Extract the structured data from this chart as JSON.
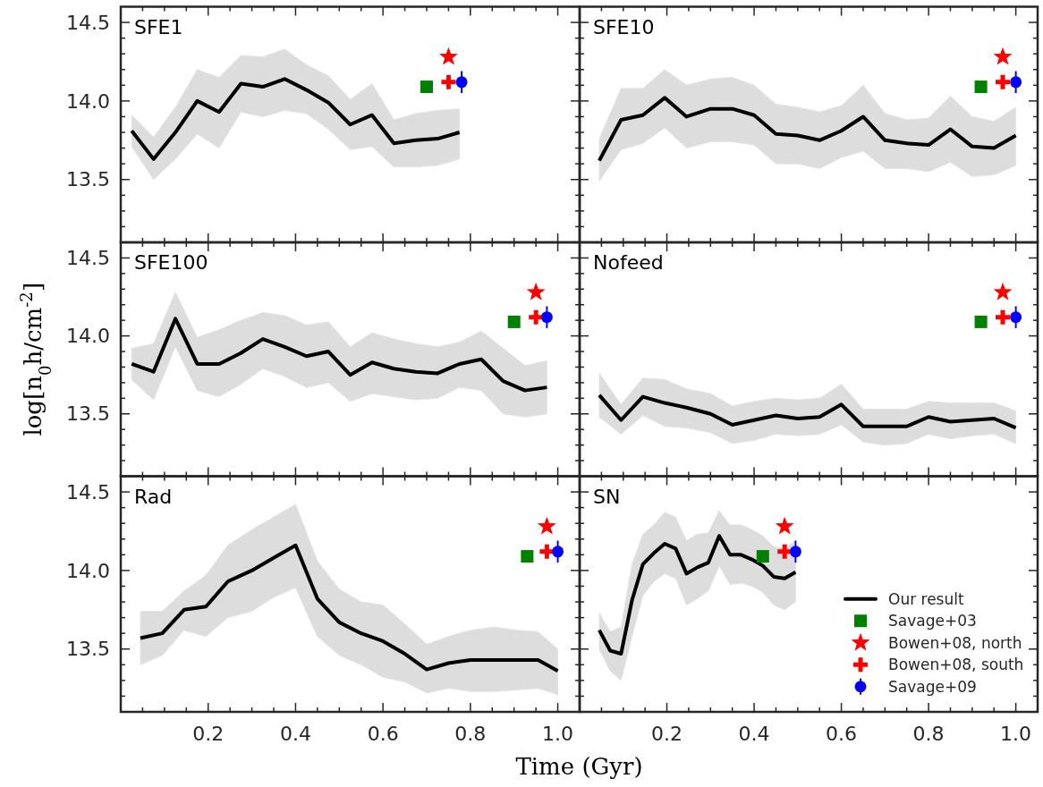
{
  "chart_data": [
    {
      "type": "line",
      "title": "SFE1",
      "xlim": [
        0,
        1.05
      ],
      "ylim": [
        13.1,
        14.6
      ],
      "tick_labels": "y",
      "xticks": [
        {
          "value": 0.05,
          "label": null
        },
        {
          "value": 0.1,
          "label": null
        },
        {
          "value": 0.15,
          "label": null
        },
        0.2,
        {
          "value": 0.25,
          "label": null
        },
        {
          "value": 0.3,
          "label": null
        },
        {
          "value": 0.35,
          "label": null
        },
        0.4,
        {
          "value": 0.45,
          "label": null
        },
        {
          "value": 0.5,
          "label": null
        },
        {
          "value": 0.55,
          "label": null
        },
        0.6,
        {
          "value": 0.65,
          "label": null
        },
        {
          "value": 0.7,
          "label": null
        },
        {
          "value": 0.75,
          "label": null
        },
        0.8,
        {
          "value": 0.85,
          "label": null
        },
        {
          "value": 0.9,
          "label": null
        },
        {
          "value": 0.95,
          "label": null
        },
        1.0
      ],
      "yticks": [
        {
          "value": 13.2,
          "label": null
        },
        {
          "value": 13.3,
          "label": null
        },
        {
          "value": 13.4,
          "label": null
        },
        {
          "value": 13.5,
          "label": "13.5"
        },
        {
          "value": 13.6,
          "label": null
        },
        {
          "value": 13.7,
          "label": null
        },
        {
          "value": 13.8,
          "label": null
        },
        {
          "value": 13.9,
          "label": null
        },
        {
          "value": 14.0,
          "label": "14.0"
        },
        {
          "value": 14.1,
          "label": null
        },
        {
          "value": 14.2,
          "label": null
        },
        {
          "value": 14.3,
          "label": null
        },
        {
          "value": 14.4,
          "label": null
        },
        {
          "value": 14.5,
          "label": "14.5"
        }
      ],
      "series": [
        {
          "color": "#000000",
          "x": [
            0.025,
            0.075,
            0.125,
            0.175,
            0.225,
            0.275,
            0.325,
            0.375,
            0.425,
            0.475,
            0.525,
            0.575,
            0.625,
            0.675,
            0.725,
            0.775
          ],
          "values": [
            13.81,
            13.63,
            13.8,
            14.0,
            13.93,
            14.11,
            14.09,
            14.14,
            14.07,
            13.99,
            13.85,
            13.91,
            13.73,
            13.75,
            13.76,
            13.8
          ],
          "upper": [
            13.91,
            13.77,
            13.96,
            14.2,
            14.15,
            14.29,
            14.28,
            14.33,
            14.23,
            14.16,
            14.01,
            14.11,
            13.88,
            13.92,
            13.94,
            13.95
          ],
          "lower": [
            13.71,
            13.5,
            13.63,
            13.79,
            13.7,
            13.93,
            13.9,
            13.94,
            13.92,
            13.82,
            13.69,
            13.71,
            13.58,
            13.58,
            13.59,
            13.63
          ]
        },
        {
          "type": "scatter",
          "marker": "square",
          "color": "#008000",
          "x": [
            0.7
          ],
          "values": [
            14.09
          ]
        },
        {
          "type": "scatter",
          "marker": "star",
          "color": "#ff0000",
          "x": [
            0.75
          ],
          "values": [
            14.28
          ]
        },
        {
          "type": "scatter",
          "marker": "cross",
          "color": "#ff0000",
          "x": [
            0.75
          ],
          "values": [
            14.12
          ]
        },
        {
          "type": "scatter",
          "marker": "circle",
          "color": "#0000ff",
          "x": [
            0.78
          ],
          "values": [
            14.12
          ],
          "errors": [
            0.07
          ]
        }
      ]
    },
    {
      "type": "line",
      "title": "SFE10",
      "xlim": [
        0,
        1.05
      ],
      "ylim": [
        13.1,
        14.6
      ],
      "tick_labels": false,
      "xticks": [
        {
          "value": 0.05,
          "label": null
        },
        {
          "value": 0.1,
          "label": null
        },
        {
          "value": 0.15,
          "label": null
        },
        0.2,
        {
          "value": 0.25,
          "label": null
        },
        {
          "value": 0.3,
          "label": null
        },
        {
          "value": 0.35,
          "label": null
        },
        0.4,
        {
          "value": 0.45,
          "label": null
        },
        {
          "value": 0.5,
          "label": null
        },
        {
          "value": 0.55,
          "label": null
        },
        0.6,
        {
          "value": 0.65,
          "label": null
        },
        {
          "value": 0.7,
          "label": null
        },
        {
          "value": 0.75,
          "label": null
        },
        0.8,
        {
          "value": 0.85,
          "label": null
        },
        {
          "value": 0.9,
          "label": null
        },
        {
          "value": 0.95,
          "label": null
        },
        1.0
      ],
      "yticks": [
        {
          "value": 13.2,
          "label": null
        },
        {
          "value": 13.3,
          "label": null
        },
        {
          "value": 13.4,
          "label": null
        },
        13.5,
        {
          "value": 13.6,
          "label": null
        },
        {
          "value": 13.7,
          "label": null
        },
        {
          "value": 13.8,
          "label": null
        },
        {
          "value": 13.9,
          "label": null
        },
        14.0,
        {
          "value": 14.1,
          "label": null
        },
        {
          "value": 14.2,
          "label": null
        },
        {
          "value": 14.3,
          "label": null
        },
        {
          "value": 14.4,
          "label": null
        },
        14.5
      ],
      "series": [
        {
          "color": "#000000",
          "x": [
            0.045,
            0.095,
            0.145,
            0.195,
            0.245,
            0.3,
            0.35,
            0.4,
            0.45,
            0.5,
            0.55,
            0.6,
            0.65,
            0.7,
            0.75,
            0.8,
            0.85,
            0.9,
            0.95,
            1.0
          ],
          "values": [
            13.62,
            13.88,
            13.91,
            14.02,
            13.9,
            13.95,
            13.95,
            13.91,
            13.79,
            13.78,
            13.75,
            13.81,
            13.9,
            13.75,
            13.73,
            13.72,
            13.82,
            13.71,
            13.7,
            13.78
          ],
          "upper": [
            13.76,
            14.08,
            14.08,
            14.2,
            14.1,
            14.14,
            14.15,
            14.1,
            13.98,
            13.96,
            13.93,
            13.97,
            14.1,
            13.92,
            13.88,
            13.89,
            14.03,
            13.9,
            13.87,
            13.96
          ],
          "lower": [
            13.49,
            13.69,
            13.73,
            13.83,
            13.7,
            13.74,
            13.74,
            13.72,
            13.6,
            13.6,
            13.57,
            13.64,
            13.68,
            13.57,
            13.57,
            13.55,
            13.61,
            13.52,
            13.53,
            13.59
          ]
        },
        {
          "type": "scatter",
          "marker": "square",
          "color": "#008000",
          "x": [
            0.92
          ],
          "values": [
            14.09
          ]
        },
        {
          "type": "scatter",
          "marker": "star",
          "color": "#ff0000",
          "x": [
            0.97
          ],
          "values": [
            14.28
          ]
        },
        {
          "type": "scatter",
          "marker": "cross",
          "color": "#ff0000",
          "x": [
            0.97
          ],
          "values": [
            14.12
          ]
        },
        {
          "type": "scatter",
          "marker": "circle",
          "color": "#0000ff",
          "x": [
            1.0
          ],
          "values": [
            14.12
          ],
          "errors": [
            0.07
          ]
        }
      ]
    },
    {
      "type": "line",
      "title": "SFE100",
      "ylabel": "log[n$_{0}$h/cm$^{-2}$]",
      "xlim": [
        0,
        1.05
      ],
      "ylim": [
        13.1,
        14.6
      ],
      "tick_labels": "y",
      "xticks": [
        {
          "value": 0.05,
          "label": null
        },
        {
          "value": 0.1,
          "label": null
        },
        {
          "value": 0.15,
          "label": null
        },
        0.2,
        {
          "value": 0.25,
          "label": null
        },
        {
          "value": 0.3,
          "label": null
        },
        {
          "value": 0.35,
          "label": null
        },
        0.4,
        {
          "value": 0.45,
          "label": null
        },
        {
          "value": 0.5,
          "label": null
        },
        {
          "value": 0.55,
          "label": null
        },
        0.6,
        {
          "value": 0.65,
          "label": null
        },
        {
          "value": 0.7,
          "label": null
        },
        {
          "value": 0.75,
          "label": null
        },
        0.8,
        {
          "value": 0.85,
          "label": null
        },
        {
          "value": 0.9,
          "label": null
        },
        {
          "value": 0.95,
          "label": null
        },
        1.0
      ],
      "yticks": [
        {
          "value": 13.2,
          "label": null
        },
        {
          "value": 13.3,
          "label": null
        },
        {
          "value": 13.4,
          "label": null
        },
        {
          "value": 13.5,
          "label": "13.5"
        },
        {
          "value": 13.6,
          "label": null
        },
        {
          "value": 13.7,
          "label": null
        },
        {
          "value": 13.8,
          "label": null
        },
        {
          "value": 13.9,
          "label": null
        },
        {
          "value": 14.0,
          "label": "14.0"
        },
        {
          "value": 14.1,
          "label": null
        },
        {
          "value": 14.2,
          "label": null
        },
        {
          "value": 14.3,
          "label": null
        },
        {
          "value": 14.4,
          "label": null
        },
        {
          "value": 14.5,
          "label": "14.5"
        }
      ],
      "series": [
        {
          "color": "#000000",
          "x": [
            0.025,
            0.075,
            0.125,
            0.175,
            0.225,
            0.275,
            0.325,
            0.375,
            0.425,
            0.475,
            0.525,
            0.575,
            0.625,
            0.675,
            0.725,
            0.775,
            0.825,
            0.875,
            0.925,
            0.975
          ],
          "values": [
            13.82,
            13.77,
            14.11,
            13.82,
            13.82,
            13.89,
            13.98,
            13.93,
            13.87,
            13.9,
            13.75,
            13.83,
            13.79,
            13.77,
            13.76,
            13.82,
            13.85,
            13.71,
            13.65,
            13.67
          ],
          "upper": [
            13.92,
            13.95,
            14.28,
            13.99,
            14.04,
            14.1,
            14.15,
            14.13,
            14.07,
            14.09,
            13.93,
            14.02,
            13.98,
            13.95,
            13.93,
            13.96,
            14.03,
            13.92,
            13.81,
            13.84
          ],
          "lower": [
            13.72,
            13.59,
            13.93,
            13.65,
            13.61,
            13.69,
            13.79,
            13.74,
            13.67,
            13.7,
            13.58,
            13.63,
            13.61,
            13.59,
            13.6,
            13.67,
            13.65,
            13.5,
            13.48,
            13.5
          ]
        },
        {
          "type": "scatter",
          "marker": "square",
          "color": "#008000",
          "x": [
            0.9
          ],
          "values": [
            14.09
          ]
        },
        {
          "type": "scatter",
          "marker": "star",
          "color": "#ff0000",
          "x": [
            0.95
          ],
          "values": [
            14.28
          ]
        },
        {
          "type": "scatter",
          "marker": "cross",
          "color": "#ff0000",
          "x": [
            0.95
          ],
          "values": [
            14.12
          ]
        },
        {
          "type": "scatter",
          "marker": "circle",
          "color": "#0000ff",
          "x": [
            0.975
          ],
          "values": [
            14.12
          ],
          "errors": [
            0.07
          ]
        }
      ]
    },
    {
      "type": "line",
      "title": "Nofeed",
      "xlim": [
        0,
        1.05
      ],
      "ylim": [
        13.1,
        14.6
      ],
      "tick_labels": false,
      "xticks": [
        {
          "value": 0.05,
          "label": null
        },
        {
          "value": 0.1,
          "label": null
        },
        {
          "value": 0.15,
          "label": null
        },
        0.2,
        {
          "value": 0.25,
          "label": null
        },
        {
          "value": 0.3,
          "label": null
        },
        {
          "value": 0.35,
          "label": null
        },
        0.4,
        {
          "value": 0.45,
          "label": null
        },
        {
          "value": 0.5,
          "label": null
        },
        {
          "value": 0.55,
          "label": null
        },
        0.6,
        {
          "value": 0.65,
          "label": null
        },
        {
          "value": 0.7,
          "label": null
        },
        {
          "value": 0.75,
          "label": null
        },
        0.8,
        {
          "value": 0.85,
          "label": null
        },
        {
          "value": 0.9,
          "label": null
        },
        {
          "value": 0.95,
          "label": null
        },
        1.0
      ],
      "yticks": [
        {
          "value": 13.2,
          "label": null
        },
        {
          "value": 13.3,
          "label": null
        },
        {
          "value": 13.4,
          "label": null
        },
        13.5,
        {
          "value": 13.6,
          "label": null
        },
        {
          "value": 13.7,
          "label": null
        },
        {
          "value": 13.8,
          "label": null
        },
        {
          "value": 13.9,
          "label": null
        },
        14.0,
        {
          "value": 14.1,
          "label": null
        },
        {
          "value": 14.2,
          "label": null
        },
        {
          "value": 14.3,
          "label": null
        },
        {
          "value": 14.4,
          "label": null
        },
        14.5
      ],
      "series": [
        {
          "color": "#000000",
          "x": [
            0.045,
            0.095,
            0.145,
            0.195,
            0.245,
            0.3,
            0.35,
            0.4,
            0.45,
            0.5,
            0.55,
            0.6,
            0.65,
            0.7,
            0.75,
            0.8,
            0.85,
            0.9,
            0.95,
            1.0
          ],
          "values": [
            13.62,
            13.46,
            13.61,
            13.57,
            13.54,
            13.5,
            13.43,
            13.46,
            13.49,
            13.47,
            13.48,
            13.56,
            13.42,
            13.42,
            13.42,
            13.48,
            13.45,
            13.46,
            13.47,
            13.41
          ],
          "upper": [
            13.76,
            13.56,
            13.73,
            13.72,
            13.66,
            13.63,
            13.55,
            13.58,
            13.6,
            13.59,
            13.6,
            13.69,
            13.53,
            13.53,
            13.53,
            13.58,
            13.57,
            13.57,
            13.57,
            13.52
          ],
          "lower": [
            13.48,
            13.37,
            13.49,
            13.42,
            13.41,
            13.38,
            13.31,
            13.33,
            13.37,
            13.36,
            13.37,
            13.43,
            13.32,
            13.3,
            13.31,
            13.37,
            13.34,
            13.36,
            13.37,
            13.31
          ]
        },
        {
          "type": "scatter",
          "marker": "square",
          "color": "#008000",
          "x": [
            0.92
          ],
          "values": [
            14.09
          ]
        },
        {
          "type": "scatter",
          "marker": "star",
          "color": "#ff0000",
          "x": [
            0.97
          ],
          "values": [
            14.28
          ]
        },
        {
          "type": "scatter",
          "marker": "cross",
          "color": "#ff0000",
          "x": [
            0.97
          ],
          "values": [
            14.12
          ]
        },
        {
          "type": "scatter",
          "marker": "circle",
          "color": "#0000ff",
          "x": [
            1.0
          ],
          "values": [
            14.12
          ],
          "errors": [
            0.07
          ]
        }
      ]
    },
    {
      "type": "line",
      "title": "Rad",
      "xlabel": "Time (Gyr)",
      "xlim": [
        0,
        1.05
      ],
      "ylim": [
        13.1,
        14.6
      ],
      "xticks": [
        {
          "value": 0.05,
          "label": null
        },
        {
          "value": 0.1,
          "label": null
        },
        {
          "value": 0.15,
          "label": null
        },
        {
          "value": 0.2,
          "label": "0.2"
        },
        {
          "value": 0.25,
          "label": null
        },
        {
          "value": 0.3,
          "label": null
        },
        {
          "value": 0.35,
          "label": null
        },
        {
          "value": 0.4,
          "label": "0.4"
        },
        {
          "value": 0.45,
          "label": null
        },
        {
          "value": 0.5,
          "label": null
        },
        {
          "value": 0.55,
          "label": null
        },
        {
          "value": 0.6,
          "label": "0.6"
        },
        {
          "value": 0.65,
          "label": null
        },
        {
          "value": 0.7,
          "label": null
        },
        {
          "value": 0.75,
          "label": null
        },
        {
          "value": 0.8,
          "label": "0.8"
        },
        {
          "value": 0.85,
          "label": null
        },
        {
          "value": 0.9,
          "label": null
        },
        {
          "value": 0.95,
          "label": null
        },
        {
          "value": 1.0,
          "label": "1.0"
        }
      ],
      "yticks": [
        {
          "value": 13.2,
          "label": null
        },
        {
          "value": 13.3,
          "label": null
        },
        {
          "value": 13.4,
          "label": null
        },
        {
          "value": 13.5,
          "label": "13.5"
        },
        {
          "value": 13.6,
          "label": null
        },
        {
          "value": 13.7,
          "label": null
        },
        {
          "value": 13.8,
          "label": null
        },
        {
          "value": 13.9,
          "label": null
        },
        {
          "value": 14.0,
          "label": "14.0"
        },
        {
          "value": 14.1,
          "label": null
        },
        {
          "value": 14.2,
          "label": null
        },
        {
          "value": 14.3,
          "label": null
        },
        {
          "value": 14.4,
          "label": null
        },
        {
          "value": 14.5,
          "label": "14.5"
        }
      ],
      "series": [
        {
          "color": "#000000",
          "x": [
            0.045,
            0.095,
            0.145,
            0.195,
            0.245,
            0.3,
            0.35,
            0.4,
            0.45,
            0.5,
            0.55,
            0.6,
            0.65,
            0.7,
            0.75,
            0.8,
            0.855,
            0.905,
            0.955,
            1.0
          ],
          "values": [
            13.57,
            13.6,
            13.75,
            13.77,
            13.93,
            14.0,
            14.08,
            14.16,
            13.82,
            13.67,
            13.6,
            13.55,
            13.47,
            13.37,
            13.41,
            13.43,
            13.43,
            13.43,
            13.43,
            13.36
          ],
          "upper": [
            13.74,
            13.74,
            13.87,
            13.97,
            14.16,
            14.26,
            14.34,
            14.42,
            14.06,
            13.88,
            13.8,
            13.78,
            13.66,
            13.53,
            13.58,
            13.62,
            13.64,
            13.62,
            13.61,
            13.5
          ],
          "lower": [
            13.4,
            13.46,
            13.62,
            13.58,
            13.7,
            13.74,
            13.83,
            13.89,
            13.58,
            13.46,
            13.4,
            13.32,
            13.29,
            13.22,
            13.25,
            13.23,
            13.23,
            13.24,
            13.25,
            13.21
          ]
        },
        {
          "type": "scatter",
          "marker": "square",
          "color": "#008000",
          "x": [
            0.93
          ],
          "values": [
            14.09
          ]
        },
        {
          "type": "scatter",
          "marker": "star",
          "color": "#ff0000",
          "x": [
            0.975
          ],
          "values": [
            14.28
          ]
        },
        {
          "type": "scatter",
          "marker": "cross",
          "color": "#ff0000",
          "x": [
            0.975
          ],
          "values": [
            14.12
          ]
        },
        {
          "type": "scatter",
          "marker": "circle",
          "color": "#0000ff",
          "x": [
            1.0
          ],
          "values": [
            14.12
          ],
          "errors": [
            0.07
          ]
        }
      ]
    },
    {
      "type": "line",
      "title": "SN",
      "xlim": [
        0,
        1.05
      ],
      "ylim": [
        13.1,
        14.6
      ],
      "tick_labels": "x",
      "legend": "bottom right",
      "xticks": [
        {
          "value": 0.05,
          "label": null
        },
        {
          "value": 0.1,
          "label": null
        },
        {
          "value": 0.15,
          "label": null
        },
        {
          "value": 0.2,
          "label": "0.2"
        },
        {
          "value": 0.25,
          "label": null
        },
        {
          "value": 0.3,
          "label": null
        },
        {
          "value": 0.35,
          "label": null
        },
        {
          "value": 0.4,
          "label": "0.4"
        },
        {
          "value": 0.45,
          "label": null
        },
        {
          "value": 0.5,
          "label": null
        },
        {
          "value": 0.55,
          "label": null
        },
        {
          "value": 0.6,
          "label": "0.6"
        },
        {
          "value": 0.65,
          "label": null
        },
        {
          "value": 0.7,
          "label": null
        },
        {
          "value": 0.75,
          "label": null
        },
        {
          "value": 0.8,
          "label": "0.8"
        },
        {
          "value": 0.85,
          "label": null
        },
        {
          "value": 0.9,
          "label": null
        },
        {
          "value": 0.95,
          "label": null
        },
        {
          "value": 1.0,
          "label": "1.0"
        }
      ],
      "yticks": [
        {
          "value": 13.2,
          "label": null
        },
        {
          "value": 13.3,
          "label": null
        },
        {
          "value": 13.4,
          "label": null
        },
        13.5,
        {
          "value": 13.6,
          "label": null
        },
        {
          "value": 13.7,
          "label": null
        },
        {
          "value": 13.8,
          "label": null
        },
        {
          "value": 13.9,
          "label": null
        },
        14.0,
        {
          "value": 14.1,
          "label": null
        },
        {
          "value": 14.2,
          "label": null
        },
        {
          "value": 14.3,
          "label": null
        },
        {
          "value": 14.4,
          "label": null
        },
        14.5
      ],
      "series": [
        {
          "name": "Our result",
          "color": "#000000",
          "x": [
            0.045,
            0.07,
            0.095,
            0.12,
            0.145,
            0.17,
            0.195,
            0.22,
            0.245,
            0.27,
            0.295,
            0.32,
            0.345,
            0.37,
            0.395,
            0.42,
            0.445,
            0.47,
            0.495
          ],
          "values": [
            13.62,
            13.49,
            13.47,
            13.81,
            14.04,
            14.11,
            14.17,
            14.14,
            13.98,
            14.02,
            14.05,
            14.22,
            14.1,
            14.1,
            14.07,
            14.03,
            13.96,
            13.95,
            13.99
          ],
          "upper": [
            13.73,
            13.61,
            13.64,
            14.04,
            14.23,
            14.29,
            14.37,
            14.34,
            14.19,
            14.23,
            14.24,
            14.38,
            14.29,
            14.29,
            14.26,
            14.22,
            14.15,
            14.14,
            14.19
          ],
          "lower": [
            13.5,
            13.36,
            13.3,
            13.58,
            13.84,
            13.93,
            13.98,
            13.95,
            13.78,
            13.82,
            13.87,
            14.03,
            13.91,
            13.92,
            13.9,
            13.86,
            13.78,
            13.75,
            13.8
          ]
        },
        {
          "type": "scatter",
          "name": "Savage+03",
          "marker": "square",
          "color": "#008000",
          "x": [
            0.42
          ],
          "values": [
            14.09
          ]
        },
        {
          "type": "scatter",
          "name": "Bowen+08, north",
          "marker": "star",
          "color": "#ff0000",
          "x": [
            0.47
          ],
          "values": [
            14.28
          ]
        },
        {
          "type": "scatter",
          "name": "Bowen+08, south",
          "marker": "cross",
          "color": "#ff0000",
          "x": [
            0.47
          ],
          "values": [
            14.12
          ]
        },
        {
          "type": "scatter",
          "name": "Savage+09",
          "marker": "circle",
          "color": "#0000ff",
          "x": [
            0.495
          ],
          "values": [
            14.12
          ],
          "errors": [
            0.07
          ]
        }
      ]
    }
  ]
}
